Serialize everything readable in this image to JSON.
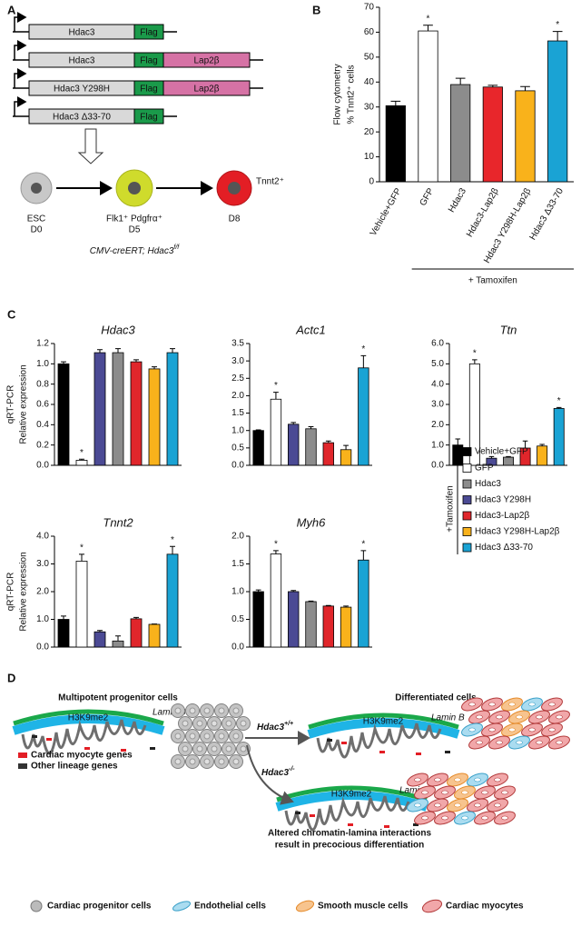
{
  "panel_labels": [
    "A",
    "B",
    "C",
    "D"
  ],
  "panel_a": {
    "constructs": [
      [
        "Hdac3",
        "Flag"
      ],
      [
        "Hdac3",
        "Flag",
        "Lap2β"
      ],
      [
        "Hdac3 Y298H",
        "Flag",
        "Lap2β"
      ],
      [
        "Hdac3 Δ33-70",
        "Flag"
      ]
    ],
    "stages": [
      {
        "name": "ESC",
        "day": "D0"
      },
      {
        "name": "Flk1⁺ Pdgfrα⁺",
        "day": "D5"
      },
      {
        "name": "Tnnt2⁺",
        "day": "D8"
      }
    ],
    "genotype": "CMV-creERT; Hdac3",
    "genotype_sup": "f/f"
  },
  "chart_data": [
    {
      "type": "bar",
      "ylabel": [
        "Flow cytometry",
        "% Tnnt2⁺ cells"
      ],
      "categories": [
        "Vehicle+GFP",
        "GFP",
        "Hdac3",
        "Hdac3-Lap2β",
        "Hdac3 Y298H-Lap2β",
        "Hdac3 Δ33-70"
      ],
      "values": [
        30.5,
        60.5,
        39,
        38,
        36.5,
        56.5
      ],
      "errors": [
        1.8,
        2.3,
        2.5,
        0.7,
        1.7,
        3.8
      ],
      "colors": [
        "#000000",
        "#ffffff",
        "#8c8c8c",
        "#e8262b",
        "#f9b21b",
        "#1aa3d4"
      ],
      "markers": [
        null,
        "*",
        null,
        null,
        null,
        "*"
      ],
      "ylim": [
        0,
        70
      ],
      "yticks": [
        0,
        10,
        20,
        30,
        40,
        50,
        60,
        70
      ],
      "group_label": "+ Tamoxifen"
    },
    {
      "type": "bar",
      "title": "Hdac3",
      "ylabel": [
        "qRT-PCR",
        "Relative expression"
      ],
      "values": [
        1.0,
        0.05,
        1.11,
        1.11,
        1.02,
        0.95,
        1.11
      ],
      "errors": [
        0.02,
        0.01,
        0.03,
        0.04,
        0.02,
        0.02,
        0.04
      ],
      "colors": [
        "#000000",
        "#ffffff",
        "#4b4a94",
        "#8c8c8c",
        "#e0262b",
        "#f9b21b",
        "#1aa3d4"
      ],
      "markers": [
        null,
        "*",
        null,
        null,
        null,
        null,
        null
      ],
      "ylim": [
        0,
        1.2
      ],
      "yticks": [
        {
          "value": 0,
          "label": "0.0"
        },
        0.2,
        0.4,
        0.6,
        0.8,
        {
          "value": 1,
          "label": "1.0"
        },
        1.2
      ]
    },
    {
      "type": "bar",
      "title": "Actc1",
      "values": [
        1.0,
        1.9,
        1.18,
        1.05,
        0.65,
        0.45,
        2.8
      ],
      "errors": [
        0.02,
        0.2,
        0.05,
        0.06,
        0.05,
        0.12,
        0.35
      ],
      "colors": [
        "#000000",
        "#ffffff",
        "#4b4a94",
        "#8c8c8c",
        "#e0262b",
        "#f9b21b",
        "#1aa3d4"
      ],
      "markers": [
        null,
        "*",
        null,
        null,
        null,
        null,
        "*"
      ],
      "ylim": [
        0,
        3.5
      ],
      "yticks": [
        {
          "value": 0,
          "label": "0.0"
        },
        0.5,
        {
          "value": 1,
          "label": "1.0"
        },
        1.5,
        {
          "value": 2,
          "label": "2.0"
        },
        2.5,
        {
          "value": 3,
          "label": "3.0"
        },
        3.5
      ]
    },
    {
      "type": "bar",
      "title": "Ttn",
      "values": [
        1.0,
        5.0,
        0.35,
        0.4,
        0.85,
        0.95,
        2.8
      ],
      "errors": [
        0.3,
        0.2,
        0.08,
        0.03,
        0.35,
        0.08,
        0.05
      ],
      "colors": [
        "#000000",
        "#ffffff",
        "#4b4a94",
        "#8c8c8c",
        "#e0262b",
        "#f9b21b",
        "#1aa3d4"
      ],
      "markers": [
        null,
        "*",
        null,
        null,
        null,
        null,
        "*"
      ],
      "ylim": [
        0,
        6
      ],
      "yticks": [
        {
          "value": 0,
          "label": "0.0"
        },
        {
          "value": 1,
          "label": "1.0"
        },
        {
          "value": 2,
          "label": "2.0"
        },
        {
          "value": 3,
          "label": "3.0"
        },
        {
          "value": 4,
          "label": "4.0"
        },
        {
          "value": 5,
          "label": "5.0"
        },
        {
          "value": 6,
          "label": "6.0"
        }
      ]
    },
    {
      "type": "bar",
      "title": "Tnnt2",
      "ylabel": [
        "qRT-PCR",
        "Relative expression"
      ],
      "values": [
        1.0,
        3.1,
        0.55,
        0.22,
        1.02,
        0.82,
        3.35
      ],
      "errors": [
        0.12,
        0.25,
        0.05,
        0.18,
        0.05,
        0.01,
        0.28
      ],
      "colors": [
        "#000000",
        "#ffffff",
        "#4b4a94",
        "#8c8c8c",
        "#e0262b",
        "#f9b21b",
        "#1aa3d4"
      ],
      "markers": [
        null,
        "*",
        null,
        null,
        null,
        null,
        "*"
      ],
      "ylim": [
        0,
        4
      ],
      "yticks": [
        {
          "value": 0,
          "label": "0.0"
        },
        {
          "value": 1,
          "label": "1.0"
        },
        {
          "value": 2,
          "label": "2.0"
        },
        {
          "value": 3,
          "label": "3.0"
        },
        {
          "value": 4,
          "label": "4.0"
        }
      ]
    },
    {
      "type": "bar",
      "title": "Myh6",
      "values": [
        1.0,
        1.68,
        1.0,
        0.82,
        0.74,
        0.72,
        1.57
      ],
      "errors": [
        0.03,
        0.06,
        0.02,
        0.01,
        0.01,
        0.02,
        0.17
      ],
      "colors": [
        "#000000",
        "#ffffff",
        "#4b4a94",
        "#8c8c8c",
        "#e0262b",
        "#f9b21b",
        "#1aa3d4"
      ],
      "markers": [
        null,
        "*",
        null,
        null,
        null,
        null,
        "*"
      ],
      "ylim": [
        0,
        2
      ],
      "yticks": [
        {
          "value": 0,
          "label": "0.0"
        },
        0.5,
        {
          "value": 1,
          "label": "1.0"
        },
        1.5,
        {
          "value": 2,
          "label": "2.0"
        }
      ]
    }
  ],
  "legend_c": {
    "entries": [
      {
        "name": "Vehicle+GFP",
        "color": "#000000"
      },
      {
        "name": "GFP",
        "color": "#ffffff"
      },
      {
        "name": "Hdac3",
        "color": "#8c8c8c"
      },
      {
        "name": "Hdac3 Y298H",
        "color": "#4b4a94"
      },
      {
        "name": "Hdac3-Lap2β",
        "color": "#e0262b"
      },
      {
        "name": "Hdac3 Y298H-Lap2β",
        "color": "#f9b21b"
      },
      {
        "name": "Hdac3 Δ33-70",
        "color": "#1aa3d4"
      }
    ],
    "bracket_label": "+Tamoxifen"
  },
  "panel_d": {
    "left_title": "Multipotent progenitor cells",
    "right_title": "Differentiated cells",
    "lamin": "Lamin B",
    "h3k9": "H3K9me2",
    "gene_legend": [
      "Cardiac myocyte genes",
      "Other lineage genes"
    ],
    "wt": {
      "gene": "Hdac3",
      "sup": "+/+"
    },
    "ko": {
      "gene": "Hdac3",
      "sup": "-/-"
    },
    "conclusion": [
      "Altered chromatin-lamina interactions",
      "result in precocious differentiation"
    ],
    "cell_legend": [
      "Cardiac progenitor cells",
      "Endothelial cells",
      "Smooth muscle cells",
      "Cardiac myocytes"
    ]
  }
}
